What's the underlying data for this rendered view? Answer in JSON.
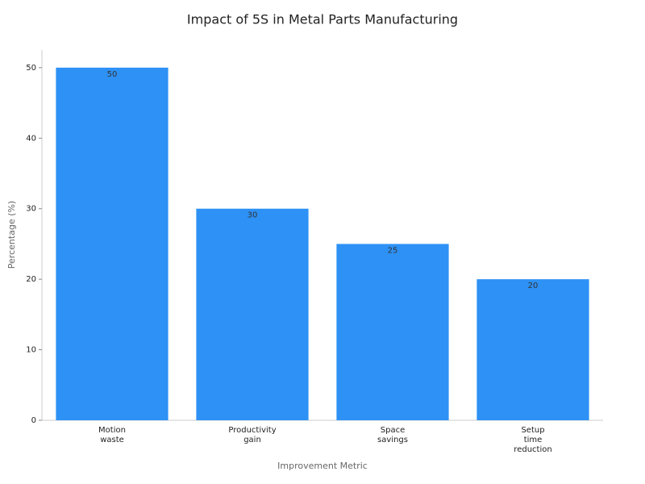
{
  "chart_data": {
    "type": "bar",
    "title": "Impact of 5S in Metal Parts Manufacturing",
    "x_label": "Improvement Metric",
    "y_label": "Percentage (%)",
    "categories": [
      "Motion waste",
      "Productivity gain",
      "Space savings",
      "Setup time reduction"
    ],
    "values": [
      50,
      30,
      25,
      20
    ],
    "color": "#2d91f5",
    "ylim": [
      0,
      52.5
    ],
    "yticks": [
      0,
      10,
      20,
      30,
      40,
      50
    ]
  }
}
